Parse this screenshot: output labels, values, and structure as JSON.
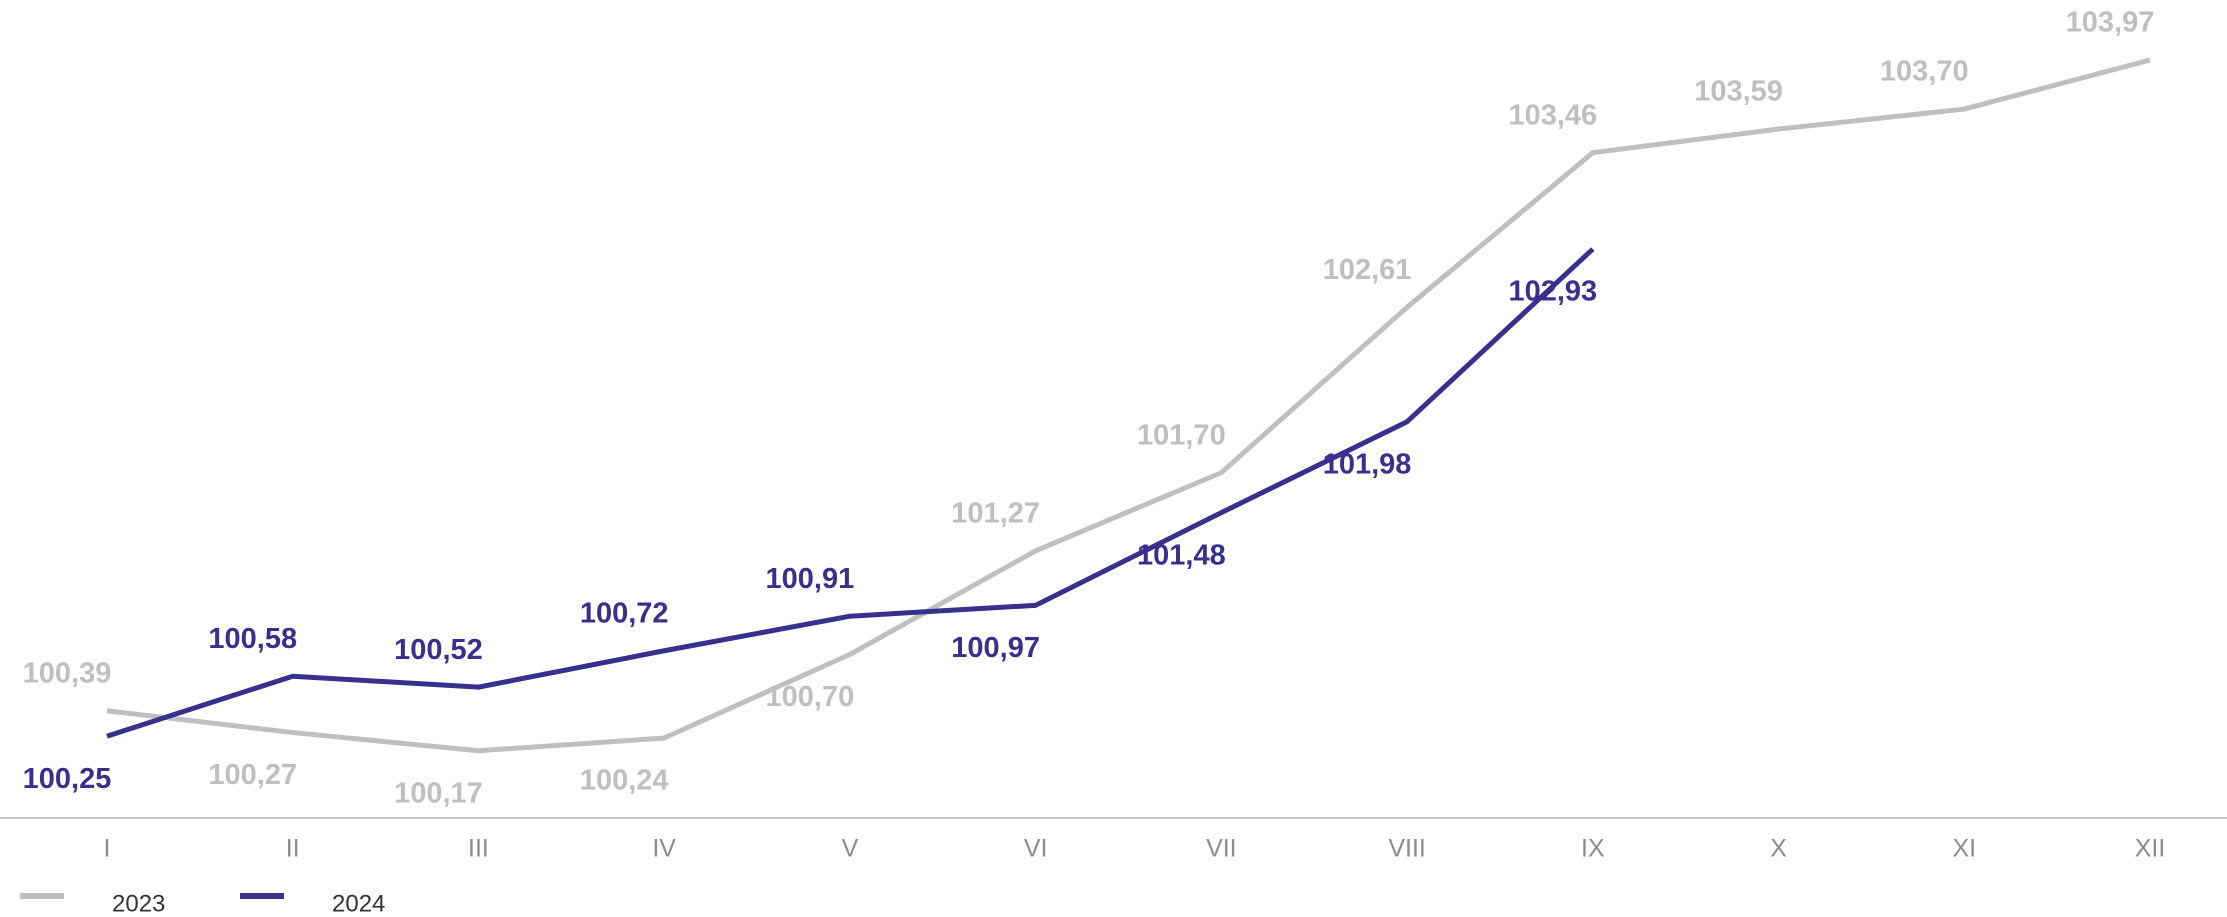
{
  "chart_data": {
    "type": "line",
    "categories": [
      "I",
      "II",
      "III",
      "IV",
      "V",
      "VI",
      "VII",
      "VIII",
      "IX",
      "X",
      "XI",
      "XII"
    ],
    "series": [
      {
        "name": "2023",
        "color": "#bfbfbf",
        "values": [
          100.39,
          100.27,
          100.17,
          100.24,
          100.7,
          101.27,
          101.7,
          102.61,
          103.46,
          103.59,
          103.7,
          103.97
        ],
        "value_labels": [
          "100,39",
          "100,27",
          "100,17",
          "100,24",
          "100,70",
          "101,27",
          "101,70",
          "102,61",
          "103,46",
          "103,59",
          "103,70",
          "103,97"
        ]
      },
      {
        "name": "2024",
        "color": "#3a2f8c",
        "values": [
          100.25,
          100.58,
          100.52,
          100.72,
          100.91,
          100.97,
          101.48,
          101.98,
          102.93,
          null,
          null,
          null
        ],
        "value_labels": [
          "100,25",
          "100,58",
          "100,52",
          "100,72",
          "100,91",
          "100,97",
          "101,48",
          "101,98",
          "102,93",
          null,
          null,
          null
        ]
      }
    ],
    "ylim": [
      99.8,
      104.3
    ],
    "legend": "bottom-left"
  }
}
